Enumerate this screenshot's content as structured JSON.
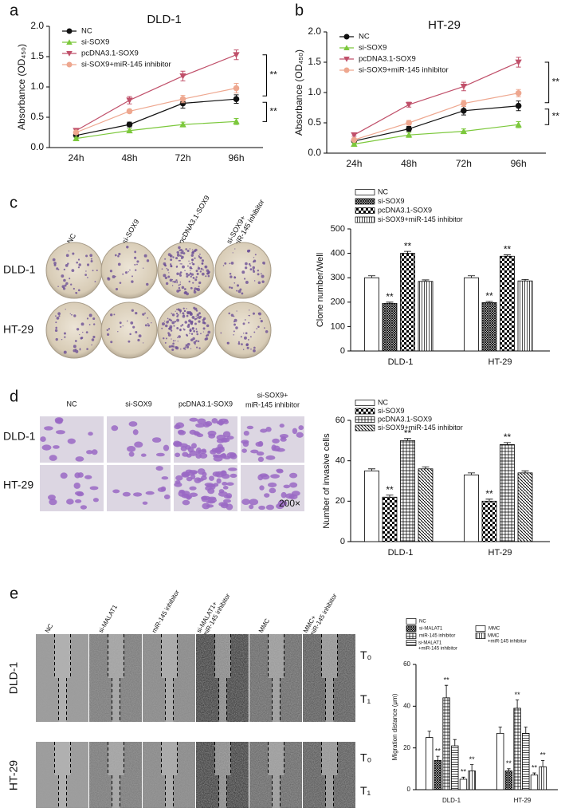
{
  "panel_letters": [
    "a",
    "b",
    "c",
    "d",
    "e"
  ],
  "chart_data": [
    {
      "type": "line",
      "title": "DLD-1",
      "y_label": "Absorbance (OD₄₅₀)",
      "categories": [
        "24h",
        "48h",
        "72h",
        "96h"
      ],
      "ylim": [
        0,
        2
      ],
      "yticks": [
        {
          "value": 0,
          "label": "0.0"
        },
        0.5,
        {
          "value": 1,
          "label": "1.0"
        },
        1.5,
        {
          "value": 2,
          "label": "2.0"
        }
      ],
      "series": [
        {
          "name": "NC",
          "color": "#111111",
          "marker": "circle",
          "values": [
            0.2,
            0.38,
            0.73,
            0.8
          ],
          "errors": [
            0.03,
            0.04,
            0.08,
            0.07
          ]
        },
        {
          "name": "si-SOX9",
          "color": "#7cc83c",
          "marker": "triangle-up",
          "values": [
            0.15,
            0.28,
            0.38,
            0.43
          ],
          "errors": [
            0.02,
            0.03,
            0.04,
            0.05
          ]
        },
        {
          "name": "pcDNA3.1-SOX9",
          "color": "#c0506a",
          "marker": "triangle-down",
          "values": [
            0.28,
            0.78,
            1.18,
            1.53
          ],
          "errors": [
            0.03,
            0.06,
            0.08,
            0.08
          ]
        },
        {
          "name": "si-SOX9+miR-145 inhibitor",
          "color": "#eea78f",
          "marker": "circle",
          "values": [
            0.25,
            0.6,
            0.8,
            0.98
          ],
          "errors": [
            0.03,
            0.03,
            0.06,
            0.08
          ]
        }
      ],
      "annotations": [
        "**",
        "**"
      ]
    },
    {
      "type": "line",
      "title": "HT-29",
      "y_label": "Absorbance (OD₄₅₀)",
      "categories": [
        "24h",
        "48h",
        "72h",
        "96h"
      ],
      "ylim": [
        0,
        2
      ],
      "yticks": [
        {
          "value": 0,
          "label": "0.0"
        },
        0.5,
        {
          "value": 1,
          "label": "1.0"
        },
        1.5,
        {
          "value": 2,
          "label": "2.0"
        }
      ],
      "series": [
        {
          "name": "NC",
          "color": "#111111",
          "marker": "circle",
          "values": [
            0.2,
            0.4,
            0.7,
            0.78
          ],
          "errors": [
            0.02,
            0.04,
            0.07,
            0.08
          ]
        },
        {
          "name": "si-SOX9",
          "color": "#7cc83c",
          "marker": "triangle-up",
          "values": [
            0.15,
            0.3,
            0.36,
            0.47
          ],
          "errors": [
            0.02,
            0.04,
            0.04,
            0.05
          ]
        },
        {
          "name": "pcDNA3.1-SOX9",
          "color": "#c0506a",
          "marker": "triangle-down",
          "values": [
            0.3,
            0.8,
            1.1,
            1.5
          ],
          "errors": [
            0.02,
            0.04,
            0.07,
            0.08
          ]
        },
        {
          "name": "si-SOX9+miR-145 inhibitor",
          "color": "#eea78f",
          "marker": "circle",
          "values": [
            0.22,
            0.5,
            0.82,
            0.99
          ],
          "errors": [
            0.02,
            0.04,
            0.05,
            0.06
          ]
        }
      ],
      "annotations": [
        "**",
        "**"
      ]
    },
    {
      "type": "bar",
      "y_label": "Clone number/Well",
      "categories": [
        "DLD-1",
        "HT-29"
      ],
      "ylim": [
        0,
        500
      ],
      "yticks": [
        0,
        100,
        200,
        300,
        400,
        500
      ],
      "series": [
        {
          "name": "NC",
          "pattern": "white",
          "values": [
            300,
            300
          ],
          "errors": [
            8,
            8
          ]
        },
        {
          "name": "si-SOX9",
          "pattern": "crosshatch",
          "values": [
            195,
            198
          ],
          "errors": [
            5,
            5
          ],
          "significance": [
            "**",
            "**"
          ]
        },
        {
          "name": "pcDNA3.1-SOX9",
          "pattern": "checker",
          "values": [
            400,
            388
          ],
          "errors": [
            8,
            6
          ],
          "significance": [
            "**",
            "**"
          ]
        },
        {
          "name": "si-SOX9+miR-145 inhibitor",
          "pattern": "vlines",
          "values": [
            285,
            287
          ],
          "errors": [
            6,
            6
          ]
        }
      ]
    },
    {
      "type": "bar",
      "y_label": "Number of invasive cells",
      "categories": [
        "DLD-1",
        "HT-29"
      ],
      "ylim": [
        0,
        60
      ],
      "yticks": [
        0,
        20,
        40,
        60
      ],
      "series": [
        {
          "name": "NC",
          "pattern": "white",
          "values": [
            35,
            33
          ],
          "errors": [
            1,
            1
          ]
        },
        {
          "name": "si-SOX9",
          "pattern": "checker",
          "values": [
            22,
            20
          ],
          "errors": [
            1,
            1
          ],
          "significance": [
            "**",
            "**"
          ]
        },
        {
          "name": "pcDNA3.1-SOX9",
          "pattern": "grid",
          "values": [
            50,
            48
          ],
          "errors": [
            1,
            1
          ],
          "significance": [
            "**",
            "**"
          ]
        },
        {
          "name": "si-SOX9+miR-145 inhibitor",
          "pattern": "diag",
          "values": [
            36,
            34
          ],
          "errors": [
            1,
            1
          ]
        }
      ]
    },
    {
      "type": "bar",
      "y_label": "Migration distance (μm)",
      "categories": [
        "DLD-1",
        "HT-29"
      ],
      "ylim": [
        0,
        60
      ],
      "yticks": [
        0,
        20,
        40,
        60
      ],
      "series": [
        {
          "name": "NC",
          "pattern": "white",
          "values": [
            25,
            27
          ],
          "errors": [
            3,
            3
          ]
        },
        {
          "name": "si-MALAT1",
          "pattern": "crosshatch",
          "values": [
            14,
            9
          ],
          "errors": [
            2,
            1
          ],
          "significance": [
            "**",
            "**"
          ]
        },
        {
          "name": "miR-145 inhibitor",
          "pattern": "grid",
          "values": [
            44,
            39
          ],
          "errors": [
            6,
            4
          ],
          "significance": [
            "**",
            "**"
          ]
        },
        {
          "name": [
            "si-MALAT1",
            "+miR-145 inhibitor"
          ],
          "pattern": "hlines",
          "values": [
            21,
            27
          ],
          "errors": [
            3,
            3
          ]
        },
        {
          "name": "MMC",
          "pattern": "white",
          "values": [
            5,
            7
          ],
          "errors": [
            1,
            1
          ],
          "significance": [
            "**",
            "**"
          ]
        },
        {
          "name": [
            "MMC",
            "+miR-145 inhibitor"
          ],
          "pattern": "vlines",
          "values": [
            9,
            11
          ],
          "errors": [
            3,
            3
          ],
          "significance": [
            "**",
            "**"
          ]
        }
      ]
    }
  ],
  "images": {
    "c": {
      "columns": [
        [
          "NC"
        ],
        [
          "si-SOX9"
        ],
        [
          "pcDNA3.1-SOX9"
        ],
        [
          "si-SOX9+",
          "miR-145 inhibitor"
        ]
      ],
      "rows": [
        "DLD-1",
        "HT-29"
      ]
    },
    "d": {
      "columns": [
        [
          "NC"
        ],
        [
          "si-SOX9"
        ],
        [
          "pcDNA3.1-SOX9"
        ],
        [
          "si-SOX9+",
          "miR-145 inhibitor"
        ]
      ],
      "rows": [
        "DLD-1",
        "HT-29"
      ],
      "magnification": "200×"
    },
    "e": {
      "columns": [
        [
          "NC"
        ],
        [
          "si-MALAT1"
        ],
        [
          "miR-145 inhibitor"
        ],
        [
          "si-MALAT1+",
          "miR-145 inhibitor"
        ],
        [
          "MMC"
        ],
        [
          "MMC+",
          "miR-145 inhibitor"
        ]
      ],
      "rows": [
        "DLD-1",
        "HT-29"
      ],
      "timepoints": [
        "T₀",
        "T₁"
      ]
    }
  }
}
